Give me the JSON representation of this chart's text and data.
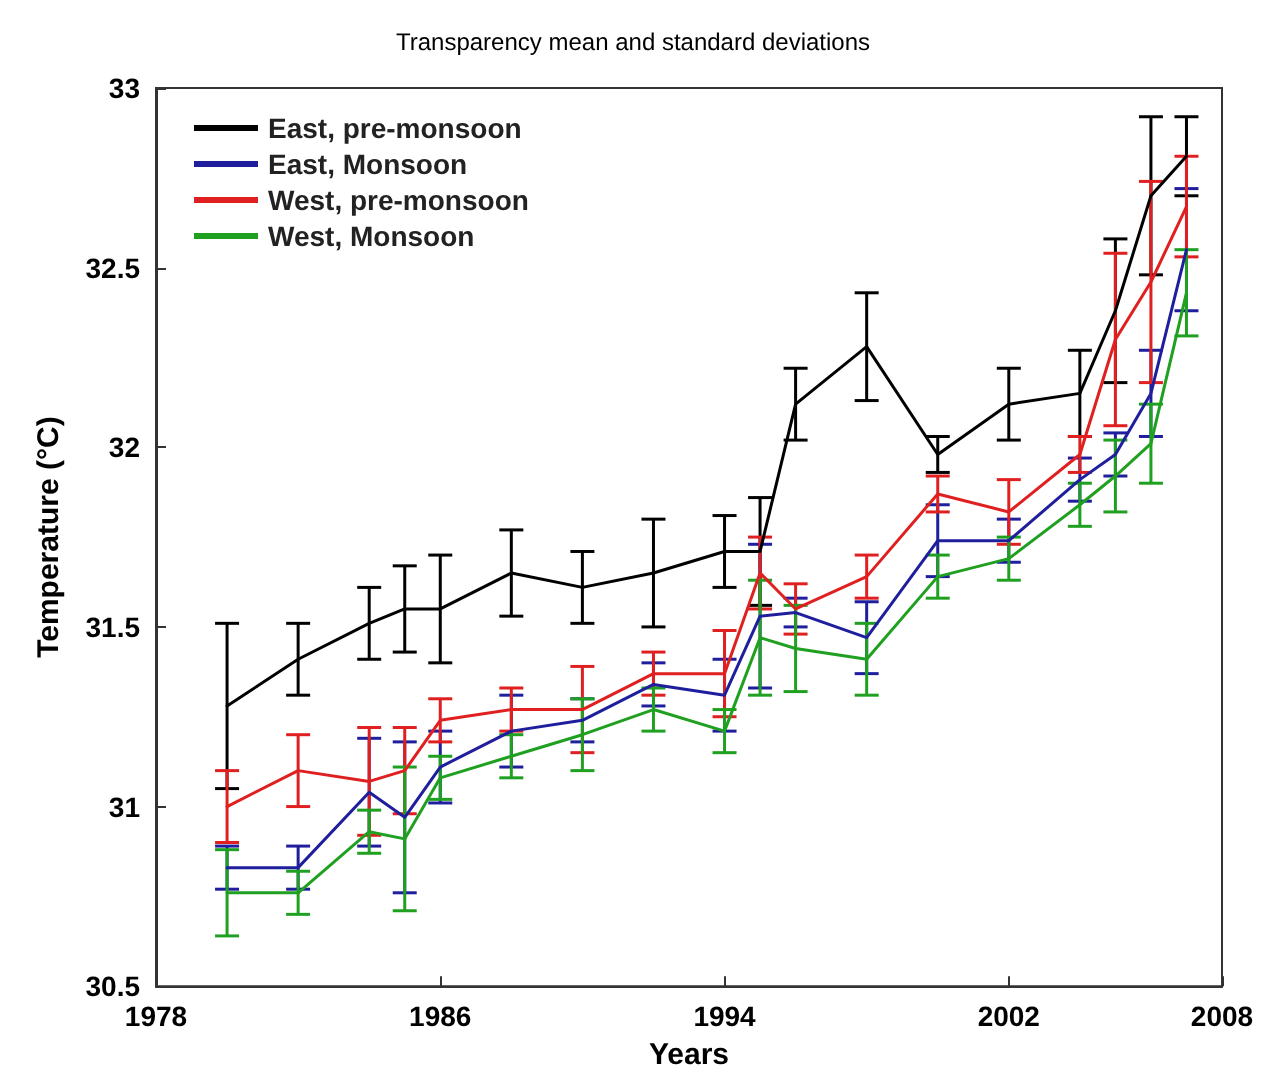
{
  "chart_data": {
    "type": "line",
    "title": "Transparency mean and standard deviations",
    "xlabel": "Years",
    "ylabel": "Temperature (°C)",
    "x": [
      1980,
      1982,
      1984,
      1985,
      1986,
      1988,
      1990,
      1992,
      1994,
      1995,
      1996,
      1998,
      2000,
      2002,
      2004,
      2005,
      2006,
      2007
    ],
    "series": [
      {
        "name": "East, pre-monsoon",
        "color": "#000000",
        "values": [
          31.28,
          31.41,
          31.51,
          31.55,
          31.55,
          31.65,
          31.61,
          31.65,
          31.71,
          31.71,
          32.12,
          32.28,
          31.98,
          32.12,
          32.15,
          32.38,
          32.7,
          32.81
        ],
        "errors": [
          0.23,
          0.1,
          0.1,
          0.12,
          0.15,
          0.12,
          0.1,
          0.15,
          0.1,
          0.15,
          0.1,
          0.15,
          0.05,
          0.1,
          0.12,
          0.2,
          0.22,
          0.11
        ]
      },
      {
        "name": "East, Monsoon",
        "color": "#1f1f9e",
        "values": [
          30.83,
          30.83,
          31.04,
          30.97,
          31.11,
          31.21,
          31.24,
          31.34,
          31.31,
          31.53,
          31.54,
          31.47,
          31.74,
          31.74,
          31.91,
          31.98,
          32.15,
          32.55
        ],
        "errors": [
          0.06,
          0.06,
          0.15,
          0.21,
          0.1,
          0.1,
          0.06,
          0.06,
          0.1,
          0.2,
          0.04,
          0.1,
          0.1,
          0.06,
          0.06,
          0.06,
          0.12,
          0.17
        ]
      },
      {
        "name": "West, pre-monsoon",
        "color": "#e02020",
        "values": [
          31.0,
          31.1,
          31.07,
          31.1,
          31.24,
          31.27,
          31.27,
          31.37,
          31.37,
          31.65,
          31.55,
          31.64,
          31.87,
          31.82,
          31.98,
          32.3,
          32.46,
          32.67
        ],
        "errors": [
          0.1,
          0.1,
          0.15,
          0.12,
          0.06,
          0.06,
          0.12,
          0.06,
          0.12,
          0.1,
          0.07,
          0.06,
          0.05,
          0.09,
          0.05,
          0.24,
          0.28,
          0.14
        ]
      },
      {
        "name": "West, Monsoon",
        "color": "#20a020",
        "values": [
          30.76,
          30.76,
          30.93,
          30.91,
          31.08,
          31.14,
          31.2,
          31.27,
          31.21,
          31.47,
          31.44,
          31.41,
          31.64,
          31.69,
          31.84,
          31.92,
          32.01,
          32.43
        ],
        "errors": [
          0.12,
          0.06,
          0.06,
          0.2,
          0.06,
          0.06,
          0.1,
          0.06,
          0.06,
          0.16,
          0.12,
          0.1,
          0.06,
          0.06,
          0.06,
          0.1,
          0.11,
          0.12
        ]
      }
    ],
    "xlim": [
      1978,
      2008
    ],
    "xticks": [
      1978,
      1986,
      1994,
      2002,
      2008
    ],
    "ylim": [
      30.5,
      33
    ],
    "yticks": [
      30.5,
      31,
      31.5,
      32,
      32.5,
      33
    ],
    "legend": "top left",
    "grid": false,
    "marker": "none",
    "line_style": "solid"
  }
}
